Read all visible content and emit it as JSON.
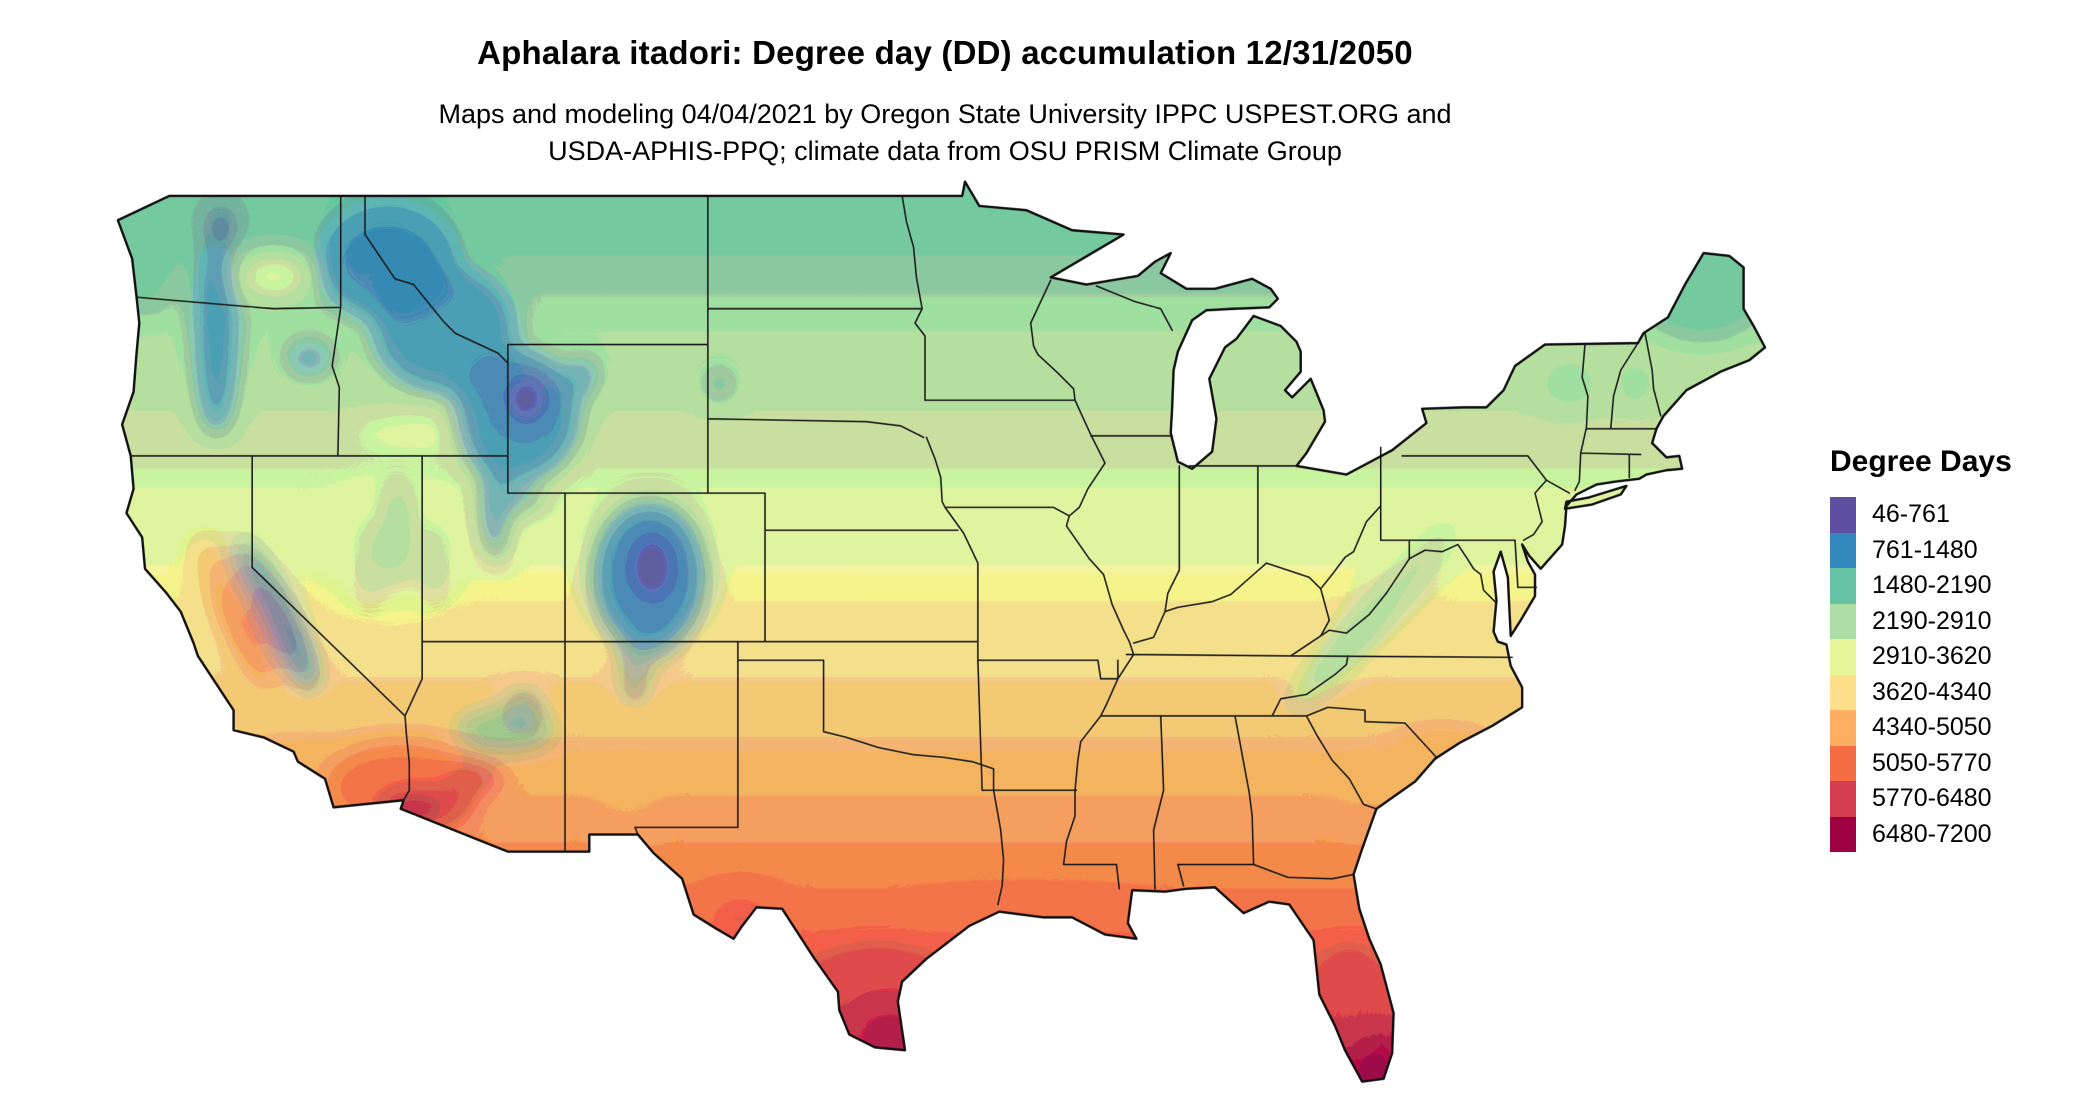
{
  "title": "Aphalara itadori: Degree day (DD) accumulation 12/31/2050",
  "subtitle_line1": "Maps and modeling 04/04/2021 by Oregon State University IPPC USPEST.ORG and",
  "subtitle_line2": "USDA-APHIS-PPQ; climate data from OSU PRISM Climate Group",
  "legend": {
    "title": "Degree Days",
    "items": [
      {
        "label": "46-761",
        "color": "#5e4fa2"
      },
      {
        "label": "761-1480",
        "color": "#3288bd"
      },
      {
        "label": "1480-2190",
        "color": "#66c2a5"
      },
      {
        "label": "2190-2910",
        "color": "#abdda4"
      },
      {
        "label": "2910-3620",
        "color": "#e6f598"
      },
      {
        "label": "3620-4340",
        "color": "#fee08b"
      },
      {
        "label": "4340-5050",
        "color": "#fdae61"
      },
      {
        "label": "5050-5770",
        "color": "#f46d43"
      },
      {
        "label": "5770-6480",
        "color": "#d53e4f"
      },
      {
        "label": "6480-7200",
        "color": "#9e0142"
      }
    ]
  },
  "chart_data": {
    "type": "heatmap",
    "subtype": "raster-choropleth-map",
    "region": "Continental United States",
    "title": "Aphalara itadori: Degree day (DD) accumulation 12/31/2050",
    "value_label": "Degree Days",
    "value_range": [
      46,
      7200
    ],
    "bins": [
      {
        "range": "46-761",
        "color": "#5e4fa2"
      },
      {
        "range": "761-1480",
        "color": "#3288bd"
      },
      {
        "range": "1480-2190",
        "color": "#66c2a5"
      },
      {
        "range": "2190-2910",
        "color": "#abdda4"
      },
      {
        "range": "2910-3620",
        "color": "#e6f598"
      },
      {
        "range": "3620-4340",
        "color": "#fee08b"
      },
      {
        "range": "4340-5050",
        "color": "#fdae61"
      },
      {
        "range": "5050-5770",
        "color": "#f46d43"
      },
      {
        "range": "5770-6480",
        "color": "#d53e4f"
      },
      {
        "range": "6480-7200",
        "color": "#9e0142"
      }
    ],
    "regional_pattern": [
      {
        "region": "Rocky Mountains / Cascades / Sierra Nevada high elevations",
        "approx_value": "46-1480"
      },
      {
        "region": "Pacific Northwest, northern plains, Great Lakes, New England",
        "approx_value": "1480-2910"
      },
      {
        "region": "Central Midwest and mid-Atlantic",
        "approx_value": "2910-3620"
      },
      {
        "region": "Mid-South, southern plains",
        "approx_value": "3620-5050"
      },
      {
        "region": "Gulf Coast, central Texas, Southeast",
        "approx_value": "5050-5770"
      },
      {
        "region": "South Texas, desert Southwest, Florida peninsula",
        "approx_value": "5770-7200"
      }
    ],
    "legend_position": "right",
    "grid": false
  }
}
